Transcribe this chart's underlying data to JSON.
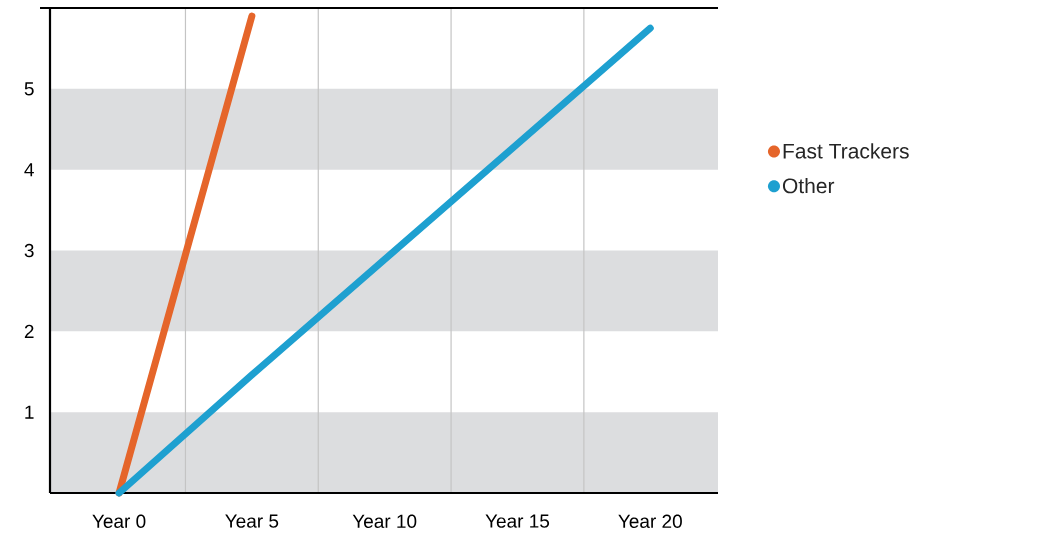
{
  "chart_data": {
    "type": "line",
    "categories": [
      "Year 0",
      "Year 5",
      "Year 10",
      "Year 15",
      "Year 20"
    ],
    "ylim": [
      0,
      6
    ],
    "yticks": [
      1,
      2,
      3,
      4,
      5
    ],
    "series": [
      {
        "name": "Fast Trackers",
        "color": "#e5652a",
        "values": [
          0,
          5.9,
          null,
          null,
          null
        ]
      },
      {
        "name": "Other",
        "color": "#1ea0d0",
        "values": [
          0,
          1.46,
          2.89,
          4.32,
          5.75
        ]
      }
    ],
    "bands": [
      {
        "axis": "y",
        "from": 0,
        "to": 1,
        "color": "#dcdddf"
      },
      {
        "axis": "y",
        "from": 2,
        "to": 3,
        "color": "#dcdddf"
      },
      {
        "axis": "y",
        "from": 4,
        "to": 5,
        "color": "#dcdddf"
      }
    ],
    "legend": "right",
    "marker": "none",
    "line_style": "solid",
    "grid": false
  }
}
